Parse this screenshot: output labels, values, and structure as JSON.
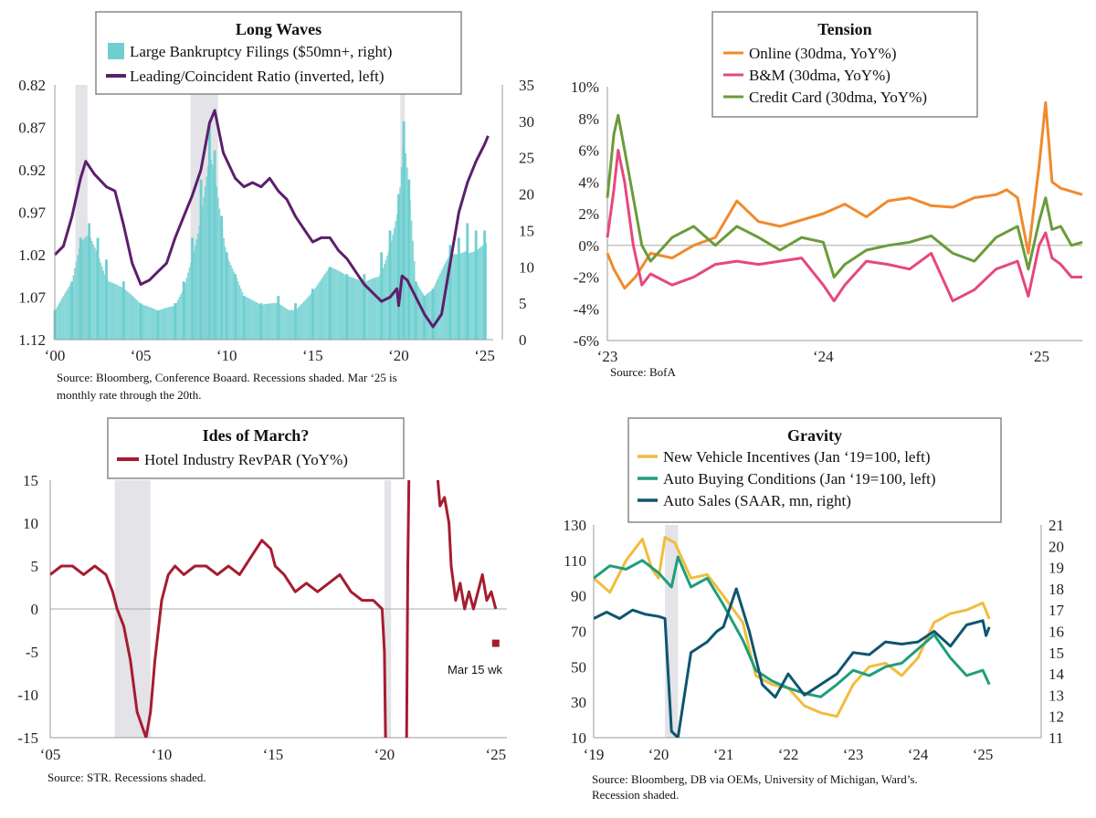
{
  "colors": {
    "teal": "#6fcfd0",
    "purple": "#5b1f6b",
    "orange": "#f08a2c",
    "pink": "#e6487c",
    "green": "#6a9c3a",
    "red": "#a51c30",
    "yellow": "#f2bc3c",
    "sea_green": "#1e9e7c",
    "navy": "#0f5570",
    "recession": "#e3e3e8"
  },
  "chart_data": [
    {
      "id": "long-waves",
      "type": "bar+line",
      "title": "Long Waves",
      "legend": [
        "Large Bankruptcy Filings ($50mn+, right)",
        "Leading/Coincident Ratio (inverted, left)"
      ],
      "legend_placement": "top-center",
      "x_ticks": [
        "‘00",
        "‘05",
        "‘10",
        "‘15",
        "‘20",
        "‘25"
      ],
      "x_range": [
        2000,
        2025.5
      ],
      "left_ticks": [
        "0.82",
        "0.87",
        "0.92",
        "0.97",
        "1.02",
        "1.07",
        "1.12"
      ],
      "left_range_inverted": [
        0.82,
        1.12
      ],
      "right_ticks": [
        "35",
        "30",
        "25",
        "20",
        "15",
        "10",
        "5",
        "0"
      ],
      "right_range": [
        0,
        35
      ],
      "recessions": [
        [
          2001.2,
          2001.9
        ],
        [
          2007.9,
          2009.5
        ],
        [
          2020.1,
          2020.35
        ]
      ],
      "series": [
        {
          "name": "Large Bankruptcy Filings ($50mn+, right)",
          "kind": "bars",
          "axis": "right",
          "x": [
            2000.0,
            2001.0,
            2001.5,
            2002.0,
            2002.5,
            2003.0,
            2004.0,
            2005.0,
            2006.0,
            2007.0,
            2007.5,
            2008.0,
            2008.5,
            2009.0,
            2009.3,
            2009.7,
            2010.0,
            2010.5,
            2011.0,
            2012.0,
            2013.0,
            2014.0,
            2015.0,
            2016.0,
            2017.0,
            2018.0,
            2019.0,
            2019.5,
            2020.0,
            2020.3,
            2020.6,
            2021.0,
            2021.5,
            2022.0,
            2023.0,
            2023.5,
            2024.0,
            2024.5,
            2025.0
          ],
          "values": [
            4,
            8,
            14,
            16,
            14,
            11,
            8,
            5,
            4,
            5,
            8,
            14,
            22,
            30,
            26,
            17,
            12,
            9,
            6,
            5,
            6,
            5,
            7,
            10,
            9,
            9,
            12,
            15,
            20,
            30,
            22,
            8,
            6,
            7,
            13,
            14,
            16,
            15,
            15
          ]
        },
        {
          "name": "Leading/Coincident Ratio (inverted, left)",
          "kind": "line",
          "axis": "left",
          "x": [
            2000.0,
            2000.5,
            2001.0,
            2001.5,
            2001.8,
            2002.3,
            2003.0,
            2003.5,
            2004.0,
            2004.5,
            2005.0,
            2005.5,
            2006.0,
            2006.5,
            2007.0,
            2007.5,
            2008.0,
            2008.5,
            2009.0,
            2009.3,
            2009.8,
            2010.5,
            2011.0,
            2011.5,
            2012.0,
            2012.5,
            2013.0,
            2013.5,
            2014.0,
            2014.5,
            2015.0,
            2015.5,
            2016.0,
            2016.5,
            2017.0,
            2017.5,
            2018.0,
            2018.5,
            2019.0,
            2019.5,
            2019.9,
            2020.0,
            2020.2,
            2020.5,
            2021.0,
            2021.5,
            2022.0,
            2022.5,
            2023.0,
            2023.5,
            2024.0,
            2024.5,
            2025.0,
            2025.2
          ],
          "values": [
            1.02,
            1.01,
            0.975,
            0.93,
            0.91,
            0.925,
            0.94,
            0.945,
            0.985,
            1.03,
            1.055,
            1.05,
            1.04,
            1.03,
            1.0,
            0.975,
            0.95,
            0.92,
            0.865,
            0.85,
            0.9,
            0.93,
            0.94,
            0.935,
            0.94,
            0.93,
            0.945,
            0.955,
            0.975,
            0.99,
            1.005,
            1.0,
            1.0,
            1.015,
            1.025,
            1.04,
            1.055,
            1.065,
            1.075,
            1.07,
            1.06,
            1.08,
            1.045,
            1.05,
            1.07,
            1.09,
            1.105,
            1.09,
            1.03,
            0.97,
            0.935,
            0.91,
            0.89,
            0.88
          ]
        }
      ],
      "source": [
        "Source: Bloomberg, Conference Boaard. Recessions shaded. Mar ‘25 is",
        "monthly rate through the 20th."
      ]
    },
    {
      "id": "tension",
      "type": "line",
      "title": "Tension",
      "legend": [
        "Online (30dma, YoY%)",
        "B&M (30dma, YoY%)",
        "Credit Card (30dma, YoY%)"
      ],
      "legend_placement": "top-center",
      "x_ticks": [
        "‘23",
        "‘24",
        "‘25"
      ],
      "x_range": [
        2023.0,
        2025.2
      ],
      "y_ticks": [
        "10%",
        "8%",
        "6%",
        "4%",
        "2%",
        "0%",
        "-2%",
        "-4%",
        "-6%"
      ],
      "y_range": [
        -6,
        10
      ],
      "series": [
        {
          "name": "Online (30dma, YoY%)",
          "x": [
            2023.0,
            2023.03,
            2023.08,
            2023.13,
            2023.2,
            2023.3,
            2023.4,
            2023.5,
            2023.6,
            2023.7,
            2023.8,
            2023.9,
            2024.0,
            2024.1,
            2024.2,
            2024.3,
            2024.4,
            2024.5,
            2024.6,
            2024.7,
            2024.8,
            2024.85,
            2024.9,
            2024.95,
            2025.0,
            2025.03,
            2025.06,
            2025.1,
            2025.15,
            2025.2
          ],
          "values": [
            -0.5,
            -1.5,
            -2.7,
            -2.0,
            -0.5,
            -0.8,
            0.0,
            0.5,
            2.8,
            1.5,
            1.2,
            1.6,
            2.0,
            2.6,
            1.8,
            2.8,
            3.0,
            2.5,
            2.4,
            3.0,
            3.2,
            3.5,
            3.0,
            -0.5,
            5.0,
            9.0,
            4.0,
            3.6,
            3.4,
            3.2
          ]
        },
        {
          "name": "B&M (30dma, YoY%)",
          "x": [
            2023.0,
            2023.03,
            2023.05,
            2023.08,
            2023.12,
            2023.16,
            2023.2,
            2023.3,
            2023.4,
            2023.5,
            2023.6,
            2023.7,
            2023.8,
            2023.9,
            2024.0,
            2024.05,
            2024.1,
            2024.2,
            2024.3,
            2024.4,
            2024.5,
            2024.6,
            2024.7,
            2024.8,
            2024.9,
            2024.95,
            2025.0,
            2025.03,
            2025.06,
            2025.1,
            2025.15,
            2025.2
          ],
          "values": [
            0.5,
            3.5,
            6.0,
            4.0,
            0.0,
            -2.5,
            -1.8,
            -2.5,
            -2.0,
            -1.2,
            -1.0,
            -1.2,
            -1.0,
            -0.8,
            -2.5,
            -3.5,
            -2.5,
            -1.0,
            -1.2,
            -1.5,
            -0.5,
            -3.5,
            -2.8,
            -1.5,
            -1.0,
            -3.2,
            0.0,
            0.8,
            -0.8,
            -1.2,
            -2.0,
            -2.0
          ]
        },
        {
          "name": "Credit Card (30dma, YoY%)",
          "x": [
            2023.0,
            2023.03,
            2023.05,
            2023.08,
            2023.12,
            2023.16,
            2023.2,
            2023.3,
            2023.4,
            2023.5,
            2023.6,
            2023.7,
            2023.8,
            2023.9,
            2024.0,
            2024.05,
            2024.1,
            2024.2,
            2024.3,
            2024.4,
            2024.5,
            2024.6,
            2024.7,
            2024.8,
            2024.9,
            2024.95,
            2025.0,
            2025.03,
            2025.06,
            2025.1,
            2025.15,
            2025.2
          ],
          "values": [
            3.0,
            7.0,
            8.2,
            6.0,
            3.0,
            0.0,
            -1.0,
            0.5,
            1.2,
            0.0,
            1.2,
            0.5,
            -0.3,
            0.5,
            0.2,
            -2.0,
            -1.2,
            -0.3,
            0.0,
            0.2,
            0.6,
            -0.5,
            -1.0,
            0.5,
            1.2,
            -1.5,
            1.5,
            3.0,
            1.0,
            1.2,
            0.0,
            0.2
          ]
        }
      ],
      "source": [
        "Source: BofA"
      ]
    },
    {
      "id": "ides-of-march",
      "type": "line",
      "title": "Ides of March?",
      "legend": [
        "Hotel Industry RevPAR (YoY%)"
      ],
      "legend_placement": "top-center",
      "x_ticks": [
        "‘05",
        "‘10",
        "‘15",
        "‘20",
        "‘25"
      ],
      "x_range": [
        2005,
        2025.5
      ],
      "y_ticks": [
        "15",
        "10",
        "5",
        "0",
        "-5",
        "-10",
        "-15"
      ],
      "y_range": [
        -15,
        15
      ],
      "recessions": [
        [
          2007.9,
          2009.5
        ],
        [
          2020.0,
          2020.3
        ]
      ],
      "annotation": "Mar 15 wk",
      "annotation_point": {
        "x": 2025.0,
        "y": -4
      },
      "series": [
        {
          "name": "Hotel Industry RevPAR (YoY%)",
          "x": [
            2005.0,
            2005.5,
            2006.0,
            2006.5,
            2007.0,
            2007.5,
            2007.8,
            2008.0,
            2008.3,
            2008.6,
            2008.9,
            2009.1,
            2009.3,
            2009.5,
            2009.7,
            2010.0,
            2010.3,
            2010.6,
            2011.0,
            2011.5,
            2012.0,
            2012.5,
            2013.0,
            2013.5,
            2014.0,
            2014.5,
            2014.9,
            2015.1,
            2015.5,
            2016.0,
            2016.5,
            2017.0,
            2017.5,
            2018.0,
            2018.5,
            2019.0,
            2019.5,
            2019.9,
            2020.0,
            2020.05
          ],
          "values": [
            4,
            5,
            5,
            4,
            5,
            4,
            2,
            0,
            -2,
            -6,
            -12,
            -13.5,
            -15,
            -12,
            -6,
            1,
            4,
            5,
            4,
            5,
            5,
            4,
            5,
            4,
            6,
            8,
            7,
            5,
            4,
            2,
            3,
            2,
            3,
            4,
            2,
            1,
            1,
            0,
            -5,
            -15
          ]
        },
        {
          "name": "Hotel Industry RevPAR (YoY%)",
          "x": [
            2021.0,
            2021.05,
            2021.1
          ],
          "values": [
            -15,
            5,
            15
          ]
        },
        {
          "name": "Hotel Industry RevPAR (YoY%)",
          "x": [
            2022.4,
            2022.5,
            2022.7,
            2022.9,
            2023.0,
            2023.2,
            2023.4,
            2023.6,
            2023.8,
            2024.0,
            2024.2,
            2024.4,
            2024.6,
            2024.8,
            2025.0
          ],
          "values": [
            15,
            12,
            13,
            10,
            5,
            1,
            3,
            0,
            2,
            0,
            2,
            4,
            1,
            2,
            0
          ]
        }
      ],
      "source": [
        "Source: STR. Recessions shaded."
      ]
    },
    {
      "id": "gravity",
      "type": "line",
      "title": "Gravity",
      "legend": [
        "New Vehicle Incentives (Jan ‘19=100, left)",
        "Auto Buying Conditions (Jan ‘19=100, left)",
        "Auto Sales (SAAR, mn, right)"
      ],
      "legend_placement": "top-center",
      "x_ticks": [
        "‘19",
        "‘20",
        "‘21",
        "‘22",
        "‘23",
        "‘24",
        "‘25"
      ],
      "x_range": [
        2019,
        2025.9
      ],
      "left_ticks": [
        "130",
        "110",
        "90",
        "70",
        "50",
        "30",
        "10"
      ],
      "left_range": [
        10,
        130
      ],
      "right_ticks": [
        "21",
        "20",
        "19",
        "18",
        "17",
        "16",
        "15",
        "14",
        "13",
        "12",
        "11"
      ],
      "right_range": [
        11,
        21
      ],
      "recessions": [
        [
          2020.1,
          2020.3
        ]
      ],
      "series": [
        {
          "name": "New Vehicle Incentives (Jan ‘19=100, left)",
          "axis": "left",
          "x": [
            2019.0,
            2019.25,
            2019.5,
            2019.75,
            2019.9,
            2020.0,
            2020.1,
            2020.25,
            2020.5,
            2020.75,
            2021.0,
            2021.3,
            2021.5,
            2021.75,
            2022.0,
            2022.25,
            2022.5,
            2022.75,
            2023.0,
            2023.25,
            2023.5,
            2023.75,
            2024.0,
            2024.25,
            2024.5,
            2024.75,
            2025.0,
            2025.1
          ],
          "values": [
            100,
            92,
            110,
            122,
            105,
            100,
            123,
            120,
            100,
            102,
            90,
            75,
            45,
            40,
            38,
            28,
            24,
            22,
            40,
            50,
            52,
            45,
            55,
            75,
            80,
            82,
            86,
            77
          ]
        },
        {
          "name": "Auto Buying Conditions (Jan ‘19=100, left)",
          "axis": "left",
          "x": [
            2019.0,
            2019.25,
            2019.5,
            2019.75,
            2020.0,
            2020.2,
            2020.3,
            2020.5,
            2020.75,
            2021.0,
            2021.3,
            2021.5,
            2021.75,
            2022.0,
            2022.25,
            2022.5,
            2022.75,
            2023.0,
            2023.25,
            2023.5,
            2023.75,
            2024.0,
            2024.25,
            2024.5,
            2024.75,
            2025.0,
            2025.1
          ],
          "values": [
            100,
            107,
            105,
            110,
            103,
            95,
            112,
            95,
            100,
            85,
            65,
            48,
            42,
            38,
            35,
            33,
            40,
            48,
            45,
            50,
            52,
            60,
            68,
            55,
            45,
            48,
            40
          ]
        },
        {
          "name": "Auto Sales (SAAR, mn, right)",
          "axis": "right",
          "x": [
            2019.0,
            2019.2,
            2019.4,
            2019.6,
            2019.8,
            2020.0,
            2020.1,
            2020.2,
            2020.3,
            2020.5,
            2020.75,
            2020.9,
            2021.0,
            2021.2,
            2021.4,
            2021.6,
            2021.8,
            2022.0,
            2022.25,
            2022.5,
            2022.75,
            2023.0,
            2023.25,
            2023.5,
            2023.75,
            2024.0,
            2024.25,
            2024.5,
            2024.75,
            2025.0,
            2025.05,
            2025.1
          ],
          "values": [
            16.6,
            16.9,
            16.6,
            17.0,
            16.8,
            16.7,
            16.6,
            11.3,
            11.0,
            15.0,
            15.5,
            16.0,
            16.2,
            18.0,
            16.0,
            13.5,
            12.9,
            14.0,
            13.0,
            13.5,
            14.0,
            15.0,
            14.9,
            15.5,
            15.4,
            15.5,
            16.0,
            15.3,
            16.3,
            16.5,
            15.8,
            16.2
          ]
        }
      ],
      "source": [
        "Source: Bloomberg, DB via OEMs, University of Michigan, Ward’s.",
        "Recession shaded."
      ]
    }
  ]
}
